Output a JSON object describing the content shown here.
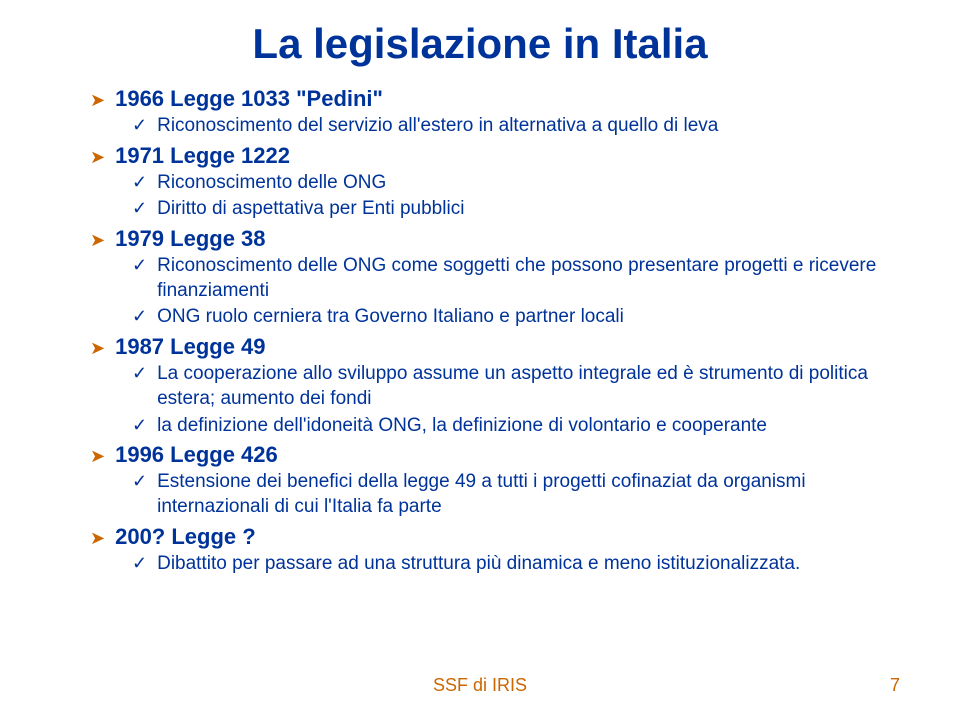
{
  "title": "La legislazione in Italia",
  "sections": [
    {
      "header": "1966 Legge 1033 \"Pedini\"",
      "items": [
        "Riconoscimento del servizio all'estero in alternativa a quello di leva"
      ]
    },
    {
      "header": "1971 Legge 1222",
      "items": [
        "Riconoscimento delle ONG",
        "Diritto di aspettativa per Enti pubblici"
      ]
    },
    {
      "header": "1979 Legge 38",
      "items": [
        "Riconoscimento delle ONG come soggetti che possono presentare progetti e ricevere finanziamenti",
        "ONG ruolo cerniera tra Governo Italiano e partner locali"
      ]
    },
    {
      "header": "1987 Legge 49",
      "items": [
        "La cooperazione allo sviluppo assume un aspetto integrale ed è strumento di politica estera; aumento dei fondi",
        "la definizione dell'idoneità ONG, la definizione di volontario e cooperante"
      ]
    },
    {
      "header": "1996 Legge 426",
      "items": [
        "Estensione dei benefici della legge 49 a tutti i progetti cofinaziat da organismi internazionali di cui l'Italia fa parte"
      ]
    },
    {
      "header": "200? Legge ?",
      "items": [
        "Dibattito per passare ad una struttura più dinamica e meno istituzionalizzata."
      ]
    }
  ],
  "footer": "SSF di IRIS",
  "pageNumber": "7",
  "colors": {
    "primary": "#003399",
    "accent": "#cc6600",
    "background": "#ffffff"
  }
}
